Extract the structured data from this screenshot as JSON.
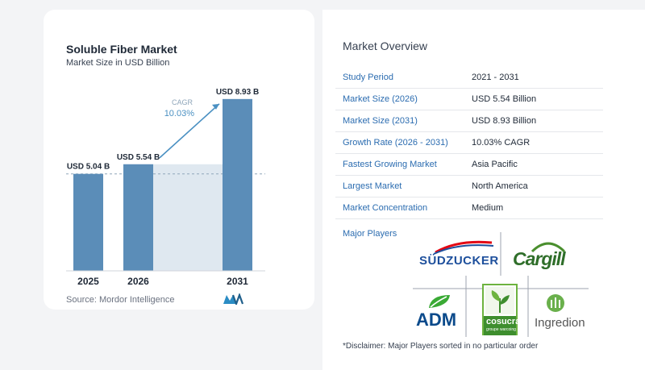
{
  "chart_data": {
    "type": "bar",
    "title": "Soluble Fiber Market",
    "subtitle": "Market Size in USD Billion",
    "categories": [
      "2025",
      "2026",
      "2031"
    ],
    "values": [
      5.04,
      5.54,
      8.93
    ],
    "data_labels": [
      "USD 5.04 B",
      "USD 5.54 B",
      "USD 8.93 B"
    ],
    "cagr_label": "CAGR",
    "cagr_value": "10.03%",
    "grid": false,
    "bar_color": "#5b8db8",
    "ylim": [
      0,
      9.3
    ]
  },
  "source": "Source: Mordor Intelligence",
  "overview": {
    "title": "Market Overview",
    "rows": [
      {
        "label": "Study Period",
        "value": "2021 - 2031"
      },
      {
        "label": "Market Size (2026)",
        "value": "USD 5.54 Billion"
      },
      {
        "label": "Market Size (2031)",
        "value": "USD 8.93 Billion"
      },
      {
        "label": "Growth Rate (2026 - 2031)",
        "value": "10.03% CAGR"
      },
      {
        "label": "Fastest Growing Market",
        "value": "Asia Pacific"
      },
      {
        "label": "Largest Market",
        "value": "North America"
      },
      {
        "label": "Market Concentration",
        "value": "Medium"
      }
    ],
    "players_label": "Major Players",
    "players": [
      "SÜDZUCKER",
      "Cargill",
      "ADM",
      "cosucra",
      "Ingredion"
    ],
    "cosucra_tagline": "groupe warcoing",
    "disclaimer": "*Disclaimer: Major Players sorted in no particular order"
  },
  "colors": {
    "accent": "#2b6cb0",
    "bar": "#5b8db8",
    "shade": "#dfe8f0",
    "cagr": "#4a90c2"
  }
}
